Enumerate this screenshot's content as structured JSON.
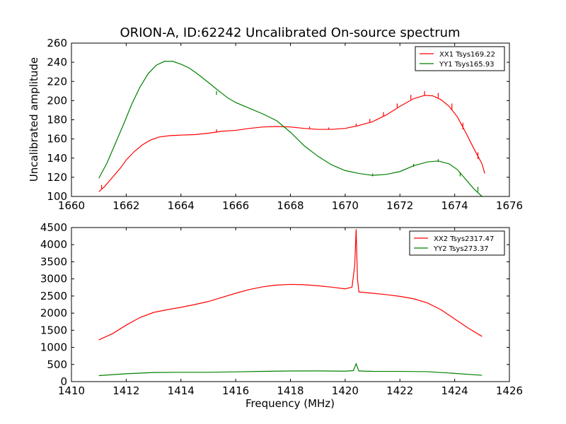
{
  "chart_data": [
    {
      "type": "line",
      "title": "ORION-A, ID:62242 Uncalibrated On-source spectrum",
      "xlabel": "",
      "ylabel": "Uncalibrated amplitude",
      "xlim": [
        1660,
        1676
      ],
      "ylim": [
        100,
        260
      ],
      "x_ticks": [
        "1660",
        "1662",
        "1664",
        "1666",
        "1668",
        "1670",
        "1672",
        "1674",
        "1676"
      ],
      "y_ticks": [
        "100",
        "120",
        "140",
        "160",
        "180",
        "200",
        "220",
        "240",
        "260"
      ],
      "legend_position": "top-right",
      "grid": false,
      "series": [
        {
          "name": "XX1 Tsys169.22",
          "color": "#ff0000",
          "points": [
            [
              1661.0,
              105
            ],
            [
              1661.2,
              110
            ],
            [
              1661.5,
              120
            ],
            [
              1661.8,
              130
            ],
            [
              1662.0,
              138
            ],
            [
              1662.3,
              147
            ],
            [
              1662.6,
              154
            ],
            [
              1662.9,
              159
            ],
            [
              1663.2,
              162
            ],
            [
              1663.6,
              163.5
            ],
            [
              1664.0,
              164
            ],
            [
              1664.5,
              164.5
            ],
            [
              1665.0,
              166
            ],
            [
              1665.5,
              168
            ],
            [
              1666.0,
              169
            ],
            [
              1666.5,
              171
            ],
            [
              1667.0,
              172.5
            ],
            [
              1667.5,
              173
            ],
            [
              1668.0,
              172.5
            ],
            [
              1668.5,
              171
            ],
            [
              1669.0,
              170
            ],
            [
              1669.5,
              170
            ],
            [
              1670.0,
              171
            ],
            [
              1670.5,
              174
            ],
            [
              1671.0,
              178
            ],
            [
              1671.5,
              185
            ],
            [
              1672.0,
              194
            ],
            [
              1672.5,
              202
            ],
            [
              1672.9,
              205.5
            ],
            [
              1673.2,
              205
            ],
            [
              1673.5,
              201
            ],
            [
              1673.8,
              194
            ],
            [
              1674.1,
              183
            ],
            [
              1674.4,
              167
            ],
            [
              1674.7,
              150
            ],
            [
              1675.0,
              134
            ],
            [
              1675.1,
              124
            ]
          ],
          "spikes": [
            [
              1661.1,
              108,
              112
            ],
            [
              1665.3,
              167,
              170
            ],
            [
              1668.7,
              171,
              173
            ],
            [
              1669.4,
              170,
              172
            ],
            [
              1670.4,
              173,
              176
            ],
            [
              1670.9,
              177,
              181
            ],
            [
              1671.4,
              184,
              188
            ],
            [
              1671.9,
              193,
              197
            ],
            [
              1672.4,
              201,
              206
            ],
            [
              1672.9,
              205,
              210
            ],
            [
              1673.4,
              203,
              208
            ],
            [
              1673.9,
              190,
              197
            ],
            [
              1674.3,
              170,
              177
            ],
            [
              1674.85,
              139,
              146
            ]
          ]
        },
        {
          "name": "YY1 Tsys165.93",
          "color": "#008000",
          "points": [
            [
              1661.0,
              119
            ],
            [
              1661.3,
              135
            ],
            [
              1661.6,
              155
            ],
            [
              1661.9,
              175
            ],
            [
              1662.2,
              196
            ],
            [
              1662.5,
              214
            ],
            [
              1662.8,
              228
            ],
            [
              1663.1,
              237
            ],
            [
              1663.4,
              241
            ],
            [
              1663.7,
              241
            ],
            [
              1664.0,
              238
            ],
            [
              1664.3,
              234
            ],
            [
              1664.6,
              228
            ],
            [
              1665.0,
              219
            ],
            [
              1665.3,
              212
            ],
            [
              1665.7,
              203
            ],
            [
              1666.0,
              198
            ],
            [
              1666.5,
              192
            ],
            [
              1667.0,
              186
            ],
            [
              1667.5,
              179
            ],
            [
              1668.0,
              167
            ],
            [
              1668.5,
              153
            ],
            [
              1669.0,
              142
            ],
            [
              1669.5,
              133
            ],
            [
              1670.0,
              127
            ],
            [
              1670.5,
              124
            ],
            [
              1671.0,
              122
            ],
            [
              1671.5,
              123
            ],
            [
              1672.0,
              126
            ],
            [
              1672.5,
              132
            ],
            [
              1673.0,
              136
            ],
            [
              1673.4,
              137
            ],
            [
              1673.8,
              134
            ],
            [
              1674.1,
              128
            ],
            [
              1674.4,
              118
            ],
            [
              1674.7,
              108
            ],
            [
              1675.0,
              100
            ]
          ],
          "spikes": [
            [
              1665.3,
              206,
              210
            ],
            [
              1671.0,
              121,
              124
            ],
            [
              1672.5,
              131,
              134
            ],
            [
              1673.4,
              136,
              139
            ],
            [
              1674.2,
              121,
              125
            ],
            [
              1674.85,
              105,
              110
            ]
          ]
        }
      ]
    },
    {
      "type": "line",
      "title": "",
      "xlabel": "Frequency (MHz)",
      "ylabel": "",
      "xlim": [
        1410,
        1426
      ],
      "ylim": [
        0,
        4500
      ],
      "x_ticks": [
        "1410",
        "1412",
        "1414",
        "1416",
        "1418",
        "1420",
        "1422",
        "1424",
        "1426"
      ],
      "y_ticks": [
        "0",
        "500",
        "1000",
        "1500",
        "2000",
        "2500",
        "3000",
        "3500",
        "4000",
        "4500"
      ],
      "legend_position": "top-right",
      "grid": false,
      "series": [
        {
          "name": "XX2 Tsys2317.47",
          "color": "#ff0000",
          "points": [
            [
              1411.0,
              1220
            ],
            [
              1411.5,
              1400
            ],
            [
              1412.0,
              1650
            ],
            [
              1412.5,
              1870
            ],
            [
              1413.0,
              2020
            ],
            [
              1413.5,
              2100
            ],
            [
              1414.0,
              2170
            ],
            [
              1414.5,
              2250
            ],
            [
              1415.0,
              2340
            ],
            [
              1415.5,
              2460
            ],
            [
              1416.0,
              2580
            ],
            [
              1416.5,
              2690
            ],
            [
              1417.0,
              2770
            ],
            [
              1417.5,
              2820
            ],
            [
              1418.0,
              2840
            ],
            [
              1418.5,
              2830
            ],
            [
              1419.0,
              2800
            ],
            [
              1419.5,
              2760
            ],
            [
              1420.0,
              2710
            ],
            [
              1420.25,
              2760
            ],
            [
              1420.35,
              3400
            ],
            [
              1420.4,
              4450
            ],
            [
              1420.45,
              3000
            ],
            [
              1420.5,
              2620
            ],
            [
              1421.0,
              2580
            ],
            [
              1421.5,
              2540
            ],
            [
              1422.0,
              2490
            ],
            [
              1422.5,
              2420
            ],
            [
              1423.0,
              2300
            ],
            [
              1423.5,
              2100
            ],
            [
              1424.0,
              1830
            ],
            [
              1424.5,
              1560
            ],
            [
              1425.0,
              1320
            ]
          ]
        },
        {
          "name": "YY2 Tsys273.37",
          "color": "#008000",
          "points": [
            [
              1411.0,
              175
            ],
            [
              1412.0,
              230
            ],
            [
              1413.0,
              265
            ],
            [
              1414.0,
              272
            ],
            [
              1415.0,
              272
            ],
            [
              1416.0,
              285
            ],
            [
              1417.0,
              300
            ],
            [
              1418.0,
              310
            ],
            [
              1419.0,
              312
            ],
            [
              1420.0,
              305
            ],
            [
              1420.3,
              320
            ],
            [
              1420.4,
              520
            ],
            [
              1420.5,
              310
            ],
            [
              1421.0,
              300
            ],
            [
              1422.0,
              298
            ],
            [
              1423.0,
              290
            ],
            [
              1424.0,
              240
            ],
            [
              1425.0,
              185
            ]
          ]
        }
      ]
    }
  ]
}
